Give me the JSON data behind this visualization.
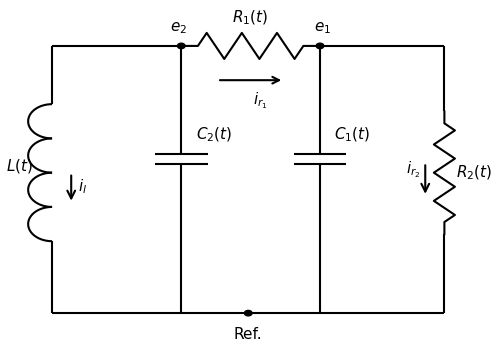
{
  "bg_color": "#ffffff",
  "line_color": "#000000",
  "line_width": 1.5,
  "fig_width": 5.0,
  "fig_height": 3.47,
  "dpi": 100,
  "xl": 0.09,
  "xe2": 0.36,
  "xe1": 0.65,
  "xr": 0.91,
  "yt": 0.87,
  "yb": 0.09,
  "ymid": 0.5
}
